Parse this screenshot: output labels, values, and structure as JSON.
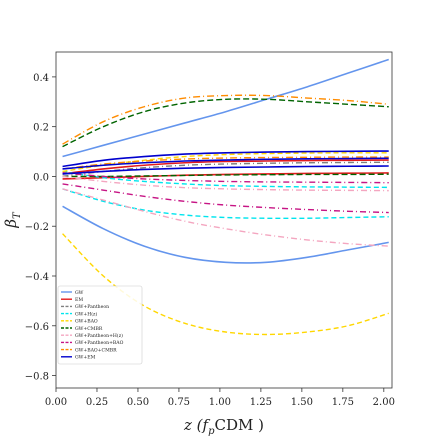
{
  "chart_data": {
    "type": "line",
    "title": "",
    "xlabel": "z (f_pCDM)",
    "xlabel_parts": {
      "main": "z (",
      "sym": "f",
      "sub": "p",
      "tail": "CDM )"
    },
    "ylabel": "β_T",
    "ylabel_parts": {
      "main": "β",
      "sub": "T"
    },
    "xlim": [
      0.0,
      2.05
    ],
    "ylim": [
      -0.85,
      0.5
    ],
    "xticks": [
      0.0,
      0.25,
      0.5,
      0.75,
      1.0,
      1.25,
      1.5,
      1.75,
      2.0
    ],
    "xtick_labels": [
      "0.00",
      "0.25",
      "0.50",
      "0.75",
      "1.00",
      "1.25",
      "1.50",
      "1.75",
      "2.00"
    ],
    "yticks": [
      0.4,
      0.2,
      0.0,
      -0.2,
      -0.4,
      -0.6,
      -0.8
    ],
    "ytick_labels": [
      "0.4",
      "0.2",
      "0.0",
      "−0.2",
      "−0.4",
      "−0.6",
      "−0.8"
    ],
    "grid": false,
    "legend_position": "lower-left",
    "x": [
      0.0,
      0.25,
      0.5,
      0.75,
      1.0,
      1.25,
      1.5,
      1.75,
      2.0
    ],
    "series": [
      {
        "name": "GW",
        "color": "#6495ed",
        "dash": "solid",
        "values": [
          0.08,
          0.125,
          0.17,
          0.215,
          0.26,
          0.31,
          0.36,
          0.415,
          0.47
        ]
      },
      {
        "name": "",
        "color": "#6495ed",
        "dash": "solid",
        "values": [
          -0.12,
          -0.21,
          -0.28,
          -0.325,
          -0.345,
          -0.345,
          -0.325,
          -0.295,
          -0.265
        ]
      },
      {
        "name": "EM",
        "color": "#e31a1c",
        "dash": "solid",
        "values": [
          0.01,
          0.03,
          0.045,
          0.055,
          0.06,
          0.062,
          0.064,
          0.065,
          0.066
        ]
      },
      {
        "name": "",
        "color": "#e31a1c",
        "dash": "solid",
        "values": [
          -0.01,
          -0.005,
          0.0,
          0.005,
          0.008,
          0.01,
          0.012,
          0.013,
          0.014
        ]
      },
      {
        "name": "GW+Pantheon",
        "color": "#808080",
        "dash": "6,3,1,3",
        "values": [
          0.0,
          0.02,
          0.035,
          0.045,
          0.05,
          0.053,
          0.055,
          0.056,
          0.057
        ]
      },
      {
        "name": "GW+H(z)",
        "color": "#00e5ee",
        "dash": "5,3",
        "values": [
          -0.05,
          -0.1,
          -0.135,
          -0.155,
          -0.165,
          -0.168,
          -0.168,
          -0.165,
          -0.162
        ]
      },
      {
        "name": "",
        "color": "#00e5ee",
        "dash": "5,3",
        "values": [
          0.02,
          -0.005,
          -0.02,
          -0.03,
          -0.037,
          -0.04,
          -0.042,
          -0.043,
          -0.044
        ]
      },
      {
        "name": "GW+BAO",
        "color": "#ffd700",
        "dash": "5,3",
        "values": [
          -0.23,
          -0.4,
          -0.52,
          -0.59,
          -0.625,
          -0.635,
          -0.625,
          -0.6,
          -0.55
        ]
      },
      {
        "name": "",
        "color": "#ffd700",
        "dash": "5,3",
        "values": [
          0.02,
          0.045,
          0.065,
          0.08,
          0.088,
          0.092,
          0.094,
          0.095,
          0.095
        ]
      },
      {
        "name": "GW+CMBR",
        "color": "#006400",
        "dash": "6,3",
        "values": [
          0.12,
          0.2,
          0.26,
          0.295,
          0.31,
          0.31,
          0.3,
          0.29,
          0.28
        ]
      },
      {
        "name": "",
        "color": "#006400",
        "dash": "6,3",
        "values": [
          0.0,
          0.0,
          0.002,
          0.004,
          0.006,
          0.007,
          0.008,
          0.008,
          0.009
        ]
      },
      {
        "name": "GW+Pantheon+H(z)",
        "color": "#f4a6c0",
        "dash": "6,3,1,3",
        "values": [
          -0.05,
          -0.095,
          -0.14,
          -0.18,
          -0.21,
          -0.235,
          -0.255,
          -0.27,
          -0.28
        ]
      },
      {
        "name": "",
        "color": "#f4a6c0",
        "dash": "6,3,1,3",
        "values": [
          0.0,
          -0.02,
          -0.035,
          -0.045,
          -0.05,
          -0.053,
          -0.055,
          -0.056,
          -0.057
        ]
      },
      {
        "name": "GW+Pantheon+BAO",
        "color": "#c71585",
        "dash": "6,3,1,3",
        "values": [
          -0.03,
          -0.055,
          -0.08,
          -0.1,
          -0.115,
          -0.125,
          -0.133,
          -0.14,
          -0.145
        ]
      },
      {
        "name": "",
        "color": "#c71585",
        "dash": "6,3,1,3",
        "values": [
          0.015,
          0.0,
          -0.01,
          -0.016,
          -0.02,
          -0.022,
          -0.023,
          -0.024,
          -0.025
        ]
      },
      {
        "name": "GW+BAO+CMBR",
        "color": "#ff8c00",
        "dash": "7,3,1,3",
        "values": [
          0.13,
          0.22,
          0.28,
          0.315,
          0.325,
          0.325,
          0.315,
          0.305,
          0.29
        ]
      },
      {
        "name": "",
        "color": "#ff8c00",
        "dash": "7,3,1,3",
        "values": [
          0.03,
          0.05,
          0.062,
          0.07,
          0.074,
          0.076,
          0.077,
          0.078,
          0.078
        ]
      },
      {
        "name": "GW+EM",
        "color": "#0000cd",
        "dash": "solid",
        "values": [
          0.04,
          0.065,
          0.08,
          0.09,
          0.095,
          0.098,
          0.1,
          0.101,
          0.102
        ]
      },
      {
        "name": "",
        "color": "#0000cd",
        "dash": "solid",
        "values": [
          0.03,
          0.045,
          0.055,
          0.062,
          0.066,
          0.069,
          0.071,
          0.072,
          0.073
        ]
      },
      {
        "name": "",
        "color": "#0000cd",
        "dash": "solid",
        "values": [
          0.01,
          0.02,
          0.028,
          0.033,
          0.036,
          0.038,
          0.04,
          0.041,
          0.042
        ]
      }
    ]
  }
}
